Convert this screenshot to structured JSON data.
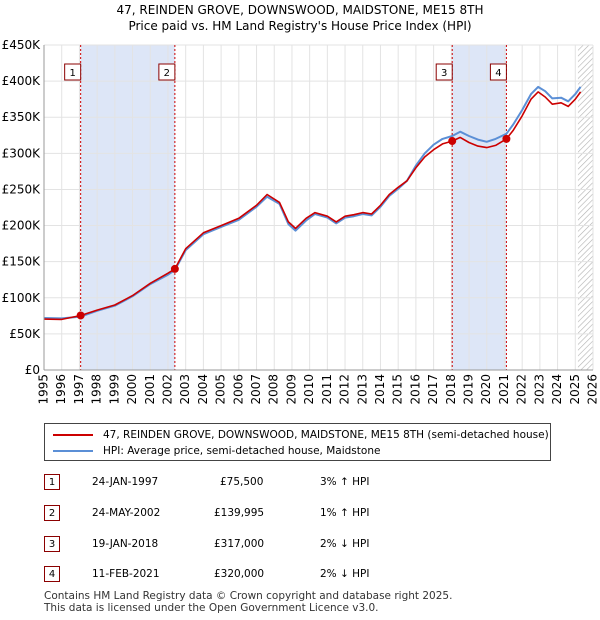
{
  "title_line1": "47, REINDEN GROVE, DOWNSWOOD, MAIDSTONE, ME15 8TH",
  "title_line2": "Price paid vs. HM Land Registry's House Price Index (HPI)",
  "chart_data": {
    "type": "line",
    "xlim": [
      1995,
      2026
    ],
    "ylim": [
      0,
      450000
    ],
    "y_ticks": [
      0,
      50000,
      100000,
      150000,
      200000,
      250000,
      300000,
      350000,
      400000,
      450000
    ],
    "y_tick_labels": [
      "£0",
      "£50K",
      "£100K",
      "£150K",
      "£200K",
      "£250K",
      "£300K",
      "£350K",
      "£400K",
      "£450K"
    ],
    "x_ticks": [
      1995,
      1996,
      1997,
      1998,
      1999,
      2000,
      2001,
      2002,
      2003,
      2004,
      2005,
      2006,
      2007,
      2008,
      2009,
      2010,
      2011,
      2012,
      2013,
      2014,
      2015,
      2016,
      2017,
      2018,
      2019,
      2020,
      2021,
      2022,
      2023,
      2024,
      2025,
      2026
    ],
    "grid": true,
    "colors": {
      "property": "#cc0000",
      "hpi": "#5b8fd6",
      "shade": "#dde6f7",
      "vline": "#cc0000",
      "border": "#8b0000"
    },
    "series": [
      {
        "name": "47, REINDEN GROVE, DOWNSWOOD, MAIDSTONE, ME15 8TH (semi-detached house)",
        "points": [
          [
            1995.0,
            70500
          ],
          [
            1996.0,
            70000
          ],
          [
            1997.07,
            75500
          ],
          [
            1998.0,
            83000
          ],
          [
            1999.0,
            90000
          ],
          [
            2000.0,
            103000
          ],
          [
            2001.0,
            120000
          ],
          [
            2002.0,
            134000
          ],
          [
            2002.39,
            139995
          ],
          [
            2003.0,
            168000
          ],
          [
            2004.0,
            190000
          ],
          [
            2005.0,
            200000
          ],
          [
            2006.0,
            210000
          ],
          [
            2007.0,
            228000
          ],
          [
            2007.6,
            243000
          ],
          [
            2008.3,
            232000
          ],
          [
            2008.8,
            205000
          ],
          [
            2009.2,
            196000
          ],
          [
            2009.8,
            210000
          ],
          [
            2010.3,
            218000
          ],
          [
            2011.0,
            213000
          ],
          [
            2011.5,
            205000
          ],
          [
            2012.0,
            213000
          ],
          [
            2012.5,
            215000
          ],
          [
            2013.0,
            218000
          ],
          [
            2013.5,
            216000
          ],
          [
            2014.0,
            228000
          ],
          [
            2014.5,
            243000
          ],
          [
            2015.0,
            253000
          ],
          [
            2015.5,
            262000
          ],
          [
            2016.0,
            280000
          ],
          [
            2016.5,
            295000
          ],
          [
            2017.0,
            305000
          ],
          [
            2017.5,
            313000
          ],
          [
            2018.05,
            317000
          ],
          [
            2018.5,
            322000
          ],
          [
            2019.0,
            315000
          ],
          [
            2019.5,
            310000
          ],
          [
            2020.0,
            308000
          ],
          [
            2020.5,
            311000
          ],
          [
            2021.11,
            320000
          ],
          [
            2021.5,
            332000
          ],
          [
            2022.0,
            352000
          ],
          [
            2022.5,
            375000
          ],
          [
            2022.9,
            385000
          ],
          [
            2023.3,
            378000
          ],
          [
            2023.7,
            368000
          ],
          [
            2024.2,
            370000
          ],
          [
            2024.6,
            365000
          ],
          [
            2025.0,
            375000
          ],
          [
            2025.3,
            385000
          ]
        ]
      },
      {
        "name": "HPI: Average price, semi-detached house, Maidstone",
        "points": [
          [
            1995.0,
            72000
          ],
          [
            1996.0,
            71500
          ],
          [
            1997.07,
            74000
          ],
          [
            1998.0,
            82000
          ],
          [
            1999.0,
            89000
          ],
          [
            2000.0,
            102000
          ],
          [
            2001.0,
            119000
          ],
          [
            2002.0,
            132000
          ],
          [
            2002.39,
            138500
          ],
          [
            2003.0,
            166000
          ],
          [
            2004.0,
            188000
          ],
          [
            2005.0,
            198000
          ],
          [
            2006.0,
            208000
          ],
          [
            2007.0,
            226000
          ],
          [
            2007.6,
            240000
          ],
          [
            2008.3,
            230000
          ],
          [
            2008.8,
            202000
          ],
          [
            2009.2,
            193000
          ],
          [
            2009.8,
            207000
          ],
          [
            2010.3,
            216000
          ],
          [
            2011.0,
            211000
          ],
          [
            2011.5,
            203000
          ],
          [
            2012.0,
            211000
          ],
          [
            2012.5,
            213000
          ],
          [
            2013.0,
            216000
          ],
          [
            2013.5,
            214000
          ],
          [
            2014.0,
            226000
          ],
          [
            2014.5,
            241000
          ],
          [
            2015.0,
            251000
          ],
          [
            2015.5,
            262000
          ],
          [
            2016.0,
            283000
          ],
          [
            2016.5,
            300000
          ],
          [
            2017.0,
            312000
          ],
          [
            2017.5,
            320000
          ],
          [
            2018.05,
            324000
          ],
          [
            2018.5,
            330000
          ],
          [
            2019.0,
            324000
          ],
          [
            2019.5,
            319000
          ],
          [
            2020.0,
            316000
          ],
          [
            2020.5,
            320000
          ],
          [
            2021.11,
            327000
          ],
          [
            2021.5,
            340000
          ],
          [
            2022.0,
            360000
          ],
          [
            2022.5,
            382000
          ],
          [
            2022.9,
            392000
          ],
          [
            2023.3,
            386000
          ],
          [
            2023.7,
            376000
          ],
          [
            2024.2,
            377000
          ],
          [
            2024.6,
            372000
          ],
          [
            2025.0,
            382000
          ],
          [
            2025.3,
            392000
          ]
        ]
      }
    ],
    "shaded_periods": [
      [
        1997.07,
        2002.39
      ],
      [
        2018.05,
        2021.11
      ]
    ],
    "future_hatch_from": 2025.15,
    "markers": [
      {
        "label": "1",
        "x": 1997.07,
        "y": 75500
      },
      {
        "label": "2",
        "x": 2002.39,
        "y": 139995
      },
      {
        "label": "3",
        "x": 2018.05,
        "y": 317000
      },
      {
        "label": "4",
        "x": 2021.11,
        "y": 320000
      }
    ]
  },
  "legend": {
    "property_label": "47, REINDEN GROVE, DOWNSWOOD, MAIDSTONE, ME15 8TH (semi-detached house)",
    "hpi_label": "HPI: Average price, semi-detached house, Maidstone"
  },
  "sales": [
    {
      "num": "1",
      "date": "24-JAN-1997",
      "price": "£75,500",
      "hpi": "3% ↑ HPI"
    },
    {
      "num": "2",
      "date": "24-MAY-2002",
      "price": "£139,995",
      "hpi": "1% ↑ HPI"
    },
    {
      "num": "3",
      "date": "19-JAN-2018",
      "price": "£317,000",
      "hpi": "2% ↓ HPI"
    },
    {
      "num": "4",
      "date": "11-FEB-2021",
      "price": "£320,000",
      "hpi": "2% ↓ HPI"
    }
  ],
  "footer_line1": "Contains HM Land Registry data © Crown copyright and database right 2025.",
  "footer_line2": "This data is licensed under the Open Government Licence v3.0."
}
